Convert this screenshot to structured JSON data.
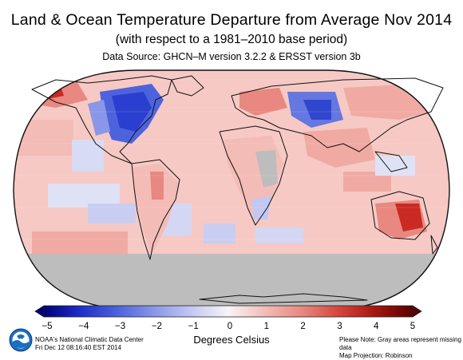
{
  "title": "Land & Ocean Temperature Departure from Average Nov 2014",
  "subtitle": "(with respect to a 1981–2010 base period)",
  "data_source": "Data Source: GHCN–M version 3.2.2 & ERSST version 3b",
  "colorbar": {
    "label": "Degrees Celsius",
    "ticks": [
      "−5",
      "−4",
      "−3",
      "−2",
      "−1",
      "0",
      "1",
      "2",
      "3",
      "4",
      "5"
    ],
    "range": [
      -5,
      5
    ],
    "colors": [
      "#00007a",
      "#1f2fc7",
      "#4d63dd",
      "#8a96e8",
      "#c3c8f3",
      "#eef0fb",
      "#fbe9e7",
      "#f3bcb7",
      "#e88880",
      "#d4453c",
      "#a5150f",
      "#5a0000"
    ]
  },
  "map": {
    "projection": "Robinson",
    "missing_color": "#bdbdbd",
    "ocean_base_color": "#f6c9c4"
  },
  "footer": {
    "org": "NOAA's National Climatic Data Center",
    "date": "Fri Dec 12 08:16:40 EST 2014",
    "note": "Please Note: Gray areas represent missing data",
    "projection": "Map Projection: Robinson"
  },
  "logo": "noaa-logo"
}
